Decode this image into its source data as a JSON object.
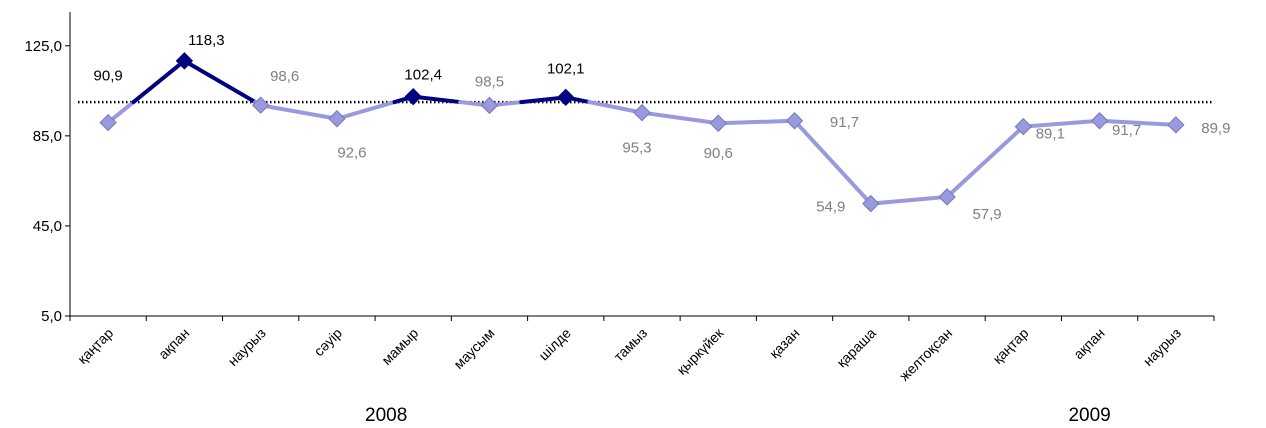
{
  "chart_data": {
    "type": "line",
    "title": "",
    "xlabel": "",
    "ylabel": "",
    "ylim": [
      5,
      140
    ],
    "yticks": [
      "5,0",
      "45,0",
      "85,0",
      "125,0"
    ],
    "ytick_values": [
      5,
      45,
      85,
      125
    ],
    "categories": [
      "қаңтар",
      "ақпан",
      "наурыз",
      "сәуір",
      "мамыр",
      "маусым",
      "шілде",
      "тамыз",
      "қыркүйек",
      "қазан",
      "қараша",
      "желтоқсан",
      "қаңтар",
      "ақпан",
      "наурыз"
    ],
    "years": [
      "2008",
      "2009"
    ],
    "reference_line": 100,
    "series": [
      {
        "values": [
          90.9,
          118.3,
          98.6,
          92.6,
          102.4,
          98.5,
          102.1,
          95.3,
          90.6,
          91.7,
          54.9,
          57.9,
          89.1,
          91.7,
          89.9
        ],
        "labels": [
          "90,9",
          "118,3",
          "98,6",
          "92,6",
          "102,4",
          "98,5",
          "102,1",
          "95,3",
          "90,6",
          "91,7",
          "54,9",
          "57,9",
          "89,1",
          "91,7",
          "89,9"
        ]
      }
    ],
    "colors": {
      "line_light": "#9999dd",
      "line_dark": "#000080",
      "label_dark": "#000000",
      "label_light": "#808080",
      "reference": "#000000"
    }
  }
}
